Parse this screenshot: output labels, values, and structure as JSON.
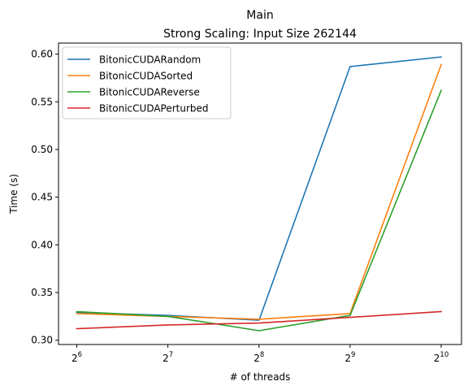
{
  "chart_data": {
    "type": "line",
    "title": "Main",
    "subtitle": "Strong Scaling: Input Size 262144",
    "xlabel": "# of threads",
    "ylabel": "Time (s)",
    "x": [
      64,
      128,
      256,
      512,
      1024
    ],
    "x_tick_labels": [
      {
        "base": "2",
        "exp": "6"
      },
      {
        "base": "2",
        "exp": "7"
      },
      {
        "base": "2",
        "exp": "8"
      },
      {
        "base": "2",
        "exp": "9"
      },
      {
        "base": "2",
        "exp": "10"
      }
    ],
    "x_scale": "log2",
    "y_ticks": [
      "0.30",
      "0.35",
      "0.40",
      "0.45",
      "0.50",
      "0.55",
      "0.60"
    ],
    "ylim": [
      0.2955,
      0.6116
    ],
    "grid": false,
    "legend_position": "top-left",
    "series": [
      {
        "name": "BitonicCUDARandom",
        "color": "#1f77b4",
        "values": [
          0.329,
          0.326,
          0.321,
          0.587,
          0.597
        ]
      },
      {
        "name": "BitonicCUDASorted",
        "color": "#ff7f0e",
        "values": [
          0.328,
          0.325,
          0.322,
          0.328,
          0.589
        ]
      },
      {
        "name": "BitonicCUDAReverse",
        "color": "#2ca02c",
        "values": [
          0.33,
          0.325,
          0.31,
          0.326,
          0.562
        ]
      },
      {
        "name": "BitonicCUDAPerturbed",
        "color": "#d62728",
        "values": [
          0.312,
          0.316,
          0.318,
          0.324,
          0.33
        ]
      }
    ]
  }
}
